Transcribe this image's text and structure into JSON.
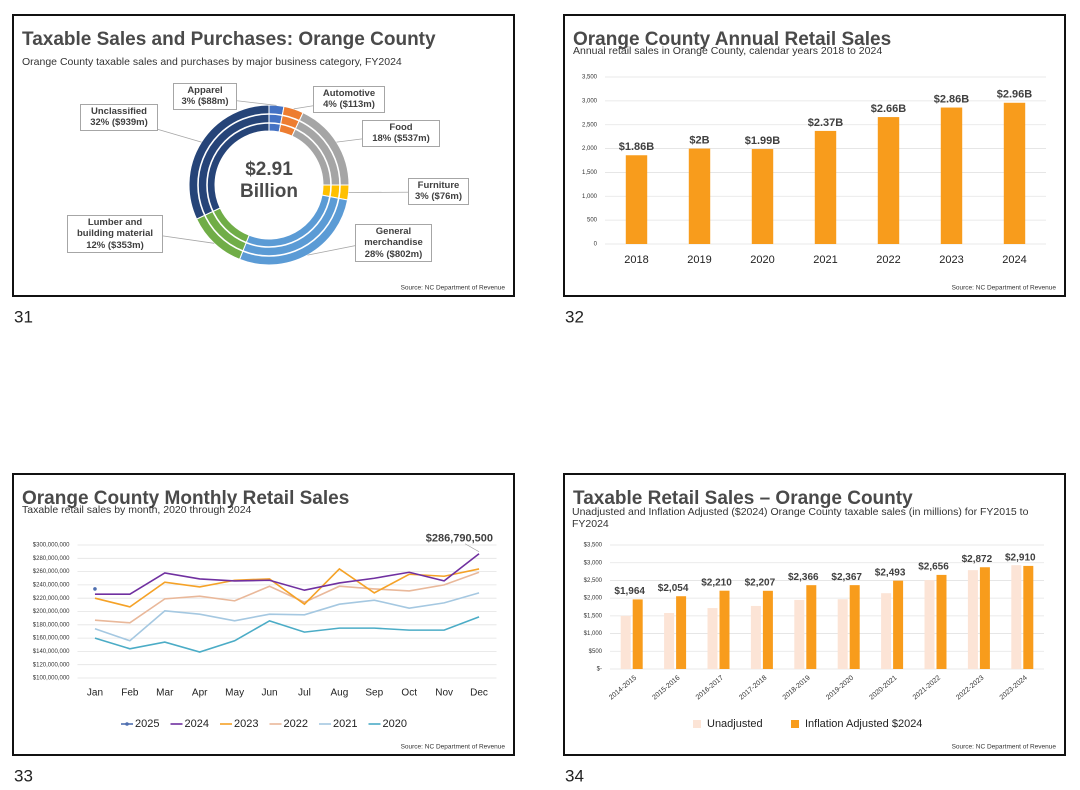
{
  "slide_numbers": [
    "31",
    "32",
    "33",
    "34"
  ],
  "chart_data": [
    {
      "type": "pie",
      "title": "Taxable Sales and Purchases: Orange County",
      "subtitle": "Orange County taxable sales and purchases by major business category, FY2024",
      "center_label": "$2.91 Billion",
      "categories": [
        "Apparel",
        "Automotive",
        "Food",
        "Furniture",
        "General merchandise",
        "Lumber and building material",
        "Unclassified"
      ],
      "values": [
        3,
        4,
        18,
        3,
        28,
        12,
        32
      ],
      "value_labels": [
        "3% ($88m)",
        "4% ($113m)",
        "18% ($537m)",
        "3% ($76m)",
        "28% ($802m)",
        "12% ($353m)",
        "32% ($939m)"
      ],
      "colors": [
        "#4472c4",
        "#ed7d31",
        "#a5a5a5",
        "#ffc000",
        "#5b9bd5",
        "#70ad47",
        "#264478"
      ],
      "source": "Source: NC Department of Revenue"
    },
    {
      "type": "bar",
      "title": "Orange County Annual Retail Sales",
      "subtitle": "Annual retail sales in Orange County, calendar years 2018 to 2024",
      "categories": [
        "2018",
        "2019",
        "2020",
        "2021",
        "2022",
        "2023",
        "2024"
      ],
      "values": [
        1860,
        2000,
        1990,
        2370,
        2660,
        2860,
        2960
      ],
      "value_labels": [
        "$1.86B",
        "$2B",
        "$1.99B",
        "$2.37B",
        "$2.66B",
        "$2.86B",
        "$2.96B"
      ],
      "color": "#f89c1c",
      "ylim": [
        0,
        3500
      ],
      "yticks": [
        0,
        500,
        {
          "value": 1000,
          "label": "1,000"
        },
        {
          "value": 1500,
          "label": "1,500"
        },
        {
          "value": 2000,
          "label": "2,000"
        },
        {
          "value": 2500,
          "label": "2,500"
        },
        {
          "value": 3000,
          "label": "3,000"
        },
        {
          "value": 3500,
          "label": "3,500"
        }
      ],
      "grid": true,
      "source": "Source: NC Department of Revenue"
    },
    {
      "type": "line",
      "title": "Orange County Monthly Retail Sales",
      "subtitle": "Taxable retail sales by month, 2020 through 2024",
      "categories": [
        "Jan",
        "Feb",
        "Mar",
        "Apr",
        "May",
        "Jun",
        "Jul",
        "Aug",
        "Sep",
        "Oct",
        "Nov",
        "Dec"
      ],
      "series": [
        {
          "name": "2025",
          "color": "#4f6fb0",
          "marker": "circle",
          "values": [
            234000000,
            null,
            null,
            null,
            null,
            null,
            null,
            null,
            null,
            null,
            null,
            null
          ]
        },
        {
          "name": "2024",
          "color": "#7030a0",
          "values": [
            226000000,
            226000000,
            258000000,
            249000000,
            246000000,
            247000000,
            232000000,
            243000000,
            250000000,
            259000000,
            246000000,
            286790500
          ],
          "value_labels": [
            null,
            null,
            null,
            null,
            null,
            null,
            null,
            null,
            null,
            null,
            null,
            "$286,790,500"
          ]
        },
        {
          "name": "2023",
          "color": "#f5a227",
          "values": [
            220000000,
            207000000,
            244000000,
            237000000,
            247000000,
            249000000,
            211000000,
            264000000,
            228000000,
            256000000,
            253000000,
            264000000
          ]
        },
        {
          "name": "2022",
          "color": "#e9b89a",
          "values": [
            187000000,
            183000000,
            219000000,
            223000000,
            216000000,
            238000000,
            214000000,
            238000000,
            234000000,
            231000000,
            240000000,
            259000000
          ]
        },
        {
          "name": "2021",
          "color": "#a5c8e1",
          "values": [
            174000000,
            156000000,
            201000000,
            196000000,
            186000000,
            196000000,
            195000000,
            211000000,
            217000000,
            205000000,
            213000000,
            228000000
          ]
        },
        {
          "name": "2020",
          "color": "#4bacc6",
          "values": [
            160000000,
            144000000,
            154000000,
            139000000,
            156000000,
            186000000,
            169000000,
            175000000,
            175000000,
            172000000,
            172000000,
            192000000
          ]
        }
      ],
      "ylim": [
        100000000,
        300000000
      ],
      "yticks": [
        {
          "value": 100000000,
          "label": "$100,000,000"
        },
        {
          "value": 120000000,
          "label": "$120,000,000"
        },
        {
          "value": 140000000,
          "label": "$140,000,000"
        },
        {
          "value": 160000000,
          "label": "$160,000,000"
        },
        {
          "value": 180000000,
          "label": "$180,000,000"
        },
        {
          "value": 200000000,
          "label": "$200,000,000"
        },
        {
          "value": 220000000,
          "label": "$220,000,000"
        },
        {
          "value": 240000000,
          "label": "$240,000,000"
        },
        {
          "value": 260000000,
          "label": "$260,000,000"
        },
        {
          "value": 280000000,
          "label": "$280,000,000"
        },
        {
          "value": 300000000,
          "label": "$300,000,000"
        }
      ],
      "grid": true,
      "legend": "bottom",
      "source": "Source: NC Department of Revenue"
    },
    {
      "type": "bar",
      "title": "Taxable Retail Sales – Orange County",
      "subtitle": "Unadjusted and Inflation Adjusted ($2024) Orange County taxable sales (in millions) for FY2015 to FY2024",
      "categories": [
        "2014-2015",
        "2015-2016",
        "2016-2017",
        "2017-2018",
        "2018-2019",
        "2019-2020",
        "2020-2021",
        "2021-2022",
        "2022-2023",
        "2023-2024"
      ],
      "series": [
        {
          "name": "Unadjusted",
          "color": "#fce4d6",
          "values": [
            1500,
            1580,
            1720,
            1780,
            1950,
            1970,
            2140,
            2510,
            2790,
            2930
          ]
        },
        {
          "name": "Inflation Adjusted $2024",
          "color": "#f89c1c",
          "values": [
            1964,
            2054,
            2210,
            2207,
            2366,
            2367,
            2493,
            2656,
            2872,
            2910
          ],
          "value_labels": [
            "$1,964",
            "$2,054",
            "$2,210",
            "$2,207",
            "$2,366",
            "$2,367",
            "$2,493",
            "$2,656",
            "$2,872",
            "$2,910"
          ]
        }
      ],
      "ylim": [
        0,
        3500
      ],
      "yticks": [
        {
          "value": 0,
          "label": "$-"
        },
        {
          "value": 500,
          "label": "$500"
        },
        {
          "value": 1000,
          "label": "$1,000"
        },
        {
          "value": 1500,
          "label": "$1,500"
        },
        {
          "value": 2000,
          "label": "$2,000"
        },
        {
          "value": 2500,
          "label": "$2,500"
        },
        {
          "value": 3000,
          "label": "$3,000"
        },
        {
          "value": 3500,
          "label": "$3,500"
        }
      ],
      "grid": true,
      "legend": "bottom",
      "source": "Source: NC Department of Revenue"
    }
  ]
}
